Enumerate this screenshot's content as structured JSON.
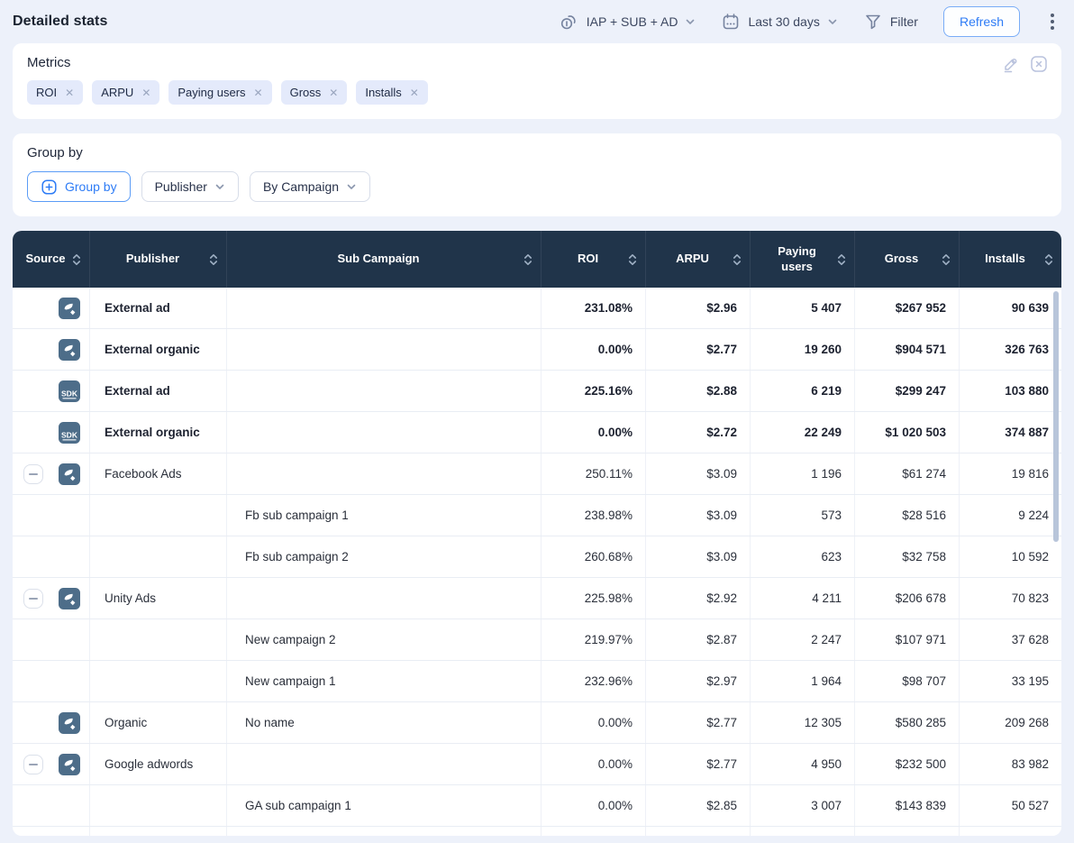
{
  "page": {
    "title": "Detailed stats"
  },
  "topbar": {
    "revenue_selector": {
      "label": "IAP + SUB + AD",
      "icon": "coins-icon"
    },
    "date_selector": {
      "label": "Last 30 days",
      "icon": "calendar-icon"
    },
    "filter": {
      "label": "Filter",
      "icon": "funnel-icon"
    },
    "refresh_label": "Refresh"
  },
  "metrics": {
    "title": "Metrics",
    "chips": [
      {
        "label": "ROI"
      },
      {
        "label": "ARPU"
      },
      {
        "label": "Paying users"
      },
      {
        "label": "Gross"
      },
      {
        "label": "Installs"
      }
    ]
  },
  "group_by": {
    "title": "Group by",
    "add_button_label": "Group by",
    "selectors": [
      {
        "label": "Publisher"
      },
      {
        "label": "By Campaign"
      }
    ]
  },
  "table": {
    "columns": {
      "source": "Source",
      "publisher": "Publisher",
      "sub_campaign": "Sub Campaign",
      "roi": "ROI",
      "arpu": "ARPU",
      "paying_users": "Paying users",
      "gross": "Gross",
      "installs": "Installs"
    },
    "rows": [
      {
        "icon": "app",
        "collapse": false,
        "publisher": "External ad",
        "sub": "",
        "bold": true,
        "roi": "231.08%",
        "arpu": "$2.96",
        "paying": "5 407",
        "gross": "$267 952",
        "installs": "90 639"
      },
      {
        "icon": "app",
        "collapse": false,
        "publisher": "External organic",
        "sub": "",
        "bold": true,
        "roi": "0.00%",
        "arpu": "$2.77",
        "paying": "19 260",
        "gross": "$904 571",
        "installs": "326 763"
      },
      {
        "icon": "sdk",
        "collapse": false,
        "publisher": "External ad",
        "sub": "",
        "bold": true,
        "roi": "225.16%",
        "arpu": "$2.88",
        "paying": "6 219",
        "gross": "$299 247",
        "installs": "103 880"
      },
      {
        "icon": "sdk",
        "collapse": false,
        "publisher": "External organic",
        "sub": "",
        "bold": true,
        "roi": "0.00%",
        "arpu": "$2.72",
        "paying": "22 249",
        "gross": "$1 020 503",
        "installs": "374 887"
      },
      {
        "icon": "app",
        "collapse": true,
        "publisher": "Facebook Ads",
        "sub": "",
        "bold": false,
        "roi": "250.11%",
        "arpu": "$3.09",
        "paying": "1 196",
        "gross": "$61 274",
        "installs": "19 816"
      },
      {
        "icon": "",
        "collapse": false,
        "publisher": "",
        "sub": "Fb sub campaign 1",
        "bold": false,
        "roi": "238.98%",
        "arpu": "$3.09",
        "paying": "573",
        "gross": "$28 516",
        "installs": "9 224"
      },
      {
        "icon": "",
        "collapse": false,
        "publisher": "",
        "sub": "Fb sub campaign 2",
        "bold": false,
        "roi": "260.68%",
        "arpu": "$3.09",
        "paying": "623",
        "gross": "$32 758",
        "installs": "10 592"
      },
      {
        "icon": "app",
        "collapse": true,
        "publisher": "Unity Ads",
        "sub": "",
        "bold": false,
        "roi": "225.98%",
        "arpu": "$2.92",
        "paying": "4 211",
        "gross": "$206 678",
        "installs": "70 823"
      },
      {
        "icon": "",
        "collapse": false,
        "publisher": "",
        "sub": "New campaign 2",
        "bold": false,
        "roi": "219.97%",
        "arpu": "$2.87",
        "paying": "2 247",
        "gross": "$107 971",
        "installs": "37 628"
      },
      {
        "icon": "",
        "collapse": false,
        "publisher": "",
        "sub": "New campaign 1",
        "bold": false,
        "roi": "232.96%",
        "arpu": "$2.97",
        "paying": "1 964",
        "gross": "$98 707",
        "installs": "33 195"
      },
      {
        "icon": "app",
        "collapse": false,
        "publisher": "Organic",
        "sub": "No name",
        "bold": false,
        "roi": "0.00%",
        "arpu": "$2.77",
        "paying": "12 305",
        "gross": "$580 285",
        "installs": "209 268"
      },
      {
        "icon": "app",
        "collapse": true,
        "publisher": "Google adwords",
        "sub": "",
        "bold": false,
        "roi": "0.00%",
        "arpu": "$2.77",
        "paying": "4 950",
        "gross": "$232 500",
        "installs": "83 982"
      },
      {
        "icon": "",
        "collapse": false,
        "publisher": "",
        "sub": "GA sub campaign 1",
        "bold": false,
        "roi": "0.00%",
        "arpu": "$2.85",
        "paying": "3 007",
        "gross": "$143 839",
        "installs": "50 527"
      },
      {
        "icon": "",
        "collapse": false,
        "publisher": "",
        "sub": "",
        "bold": false,
        "roi": "",
        "arpu": "",
        "paying": "",
        "gross": "",
        "installs": ""
      }
    ]
  },
  "colors": {
    "page_bg": "#edf1fa",
    "card_bg": "#ffffff",
    "table_header_bg": "#20344a",
    "accent_blue": "#2e7cf6",
    "chip_bg": "#e4eafb",
    "source_icon_bg": "#4d6d89"
  }
}
